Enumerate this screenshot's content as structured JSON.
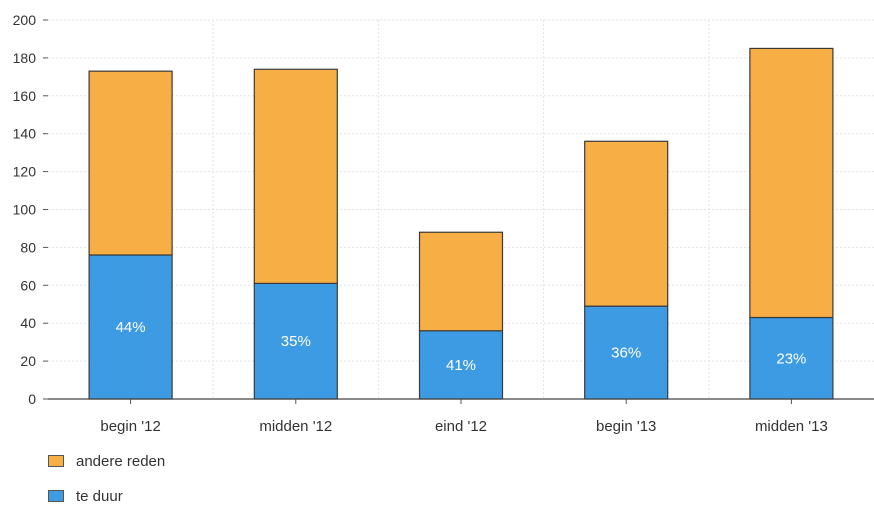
{
  "chart_data": {
    "type": "bar",
    "stacked": true,
    "categories": [
      "begin '12",
      "midden '12",
      "eind '12",
      "begin '13",
      "midden '13"
    ],
    "series": [
      {
        "name": "te duur",
        "values": [
          76,
          61,
          36,
          49,
          43
        ],
        "color": "#3d9be3"
      },
      {
        "name": "andere reden",
        "values": [
          97,
          113,
          52,
          87,
          142
        ],
        "color": "#f6ae45"
      }
    ],
    "bar_labels": [
      "44%",
      "35%",
      "41%",
      "36%",
      "23%"
    ],
    "ylim": [
      0,
      200
    ],
    "yticks": [
      0,
      20,
      40,
      60,
      80,
      100,
      120,
      140,
      160,
      180,
      200
    ],
    "grid": true,
    "legend_position": "bottom-left",
    "xlabel": "",
    "ylabel": "",
    "title": ""
  },
  "legend": [
    {
      "label": "andere reden",
      "color": "#f6ae45"
    },
    {
      "label": "te duur",
      "color": "#3d9be3"
    }
  ]
}
